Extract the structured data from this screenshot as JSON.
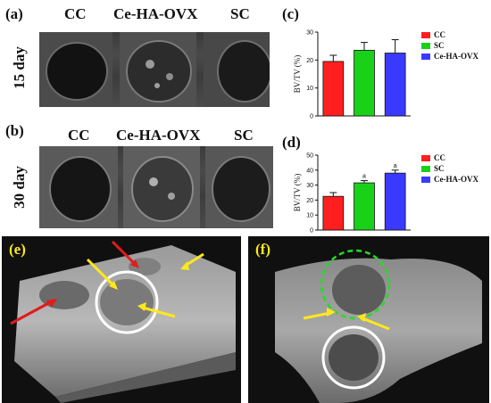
{
  "panels": {
    "a": {
      "letter": "(a)",
      "day": "15 day",
      "groups": [
        "CC",
        "Ce-HA-OVX",
        "SC"
      ]
    },
    "b": {
      "letter": "(b)",
      "day": "30 day",
      "groups": [
        "CC",
        "Ce-HA-OVX",
        "SC"
      ]
    },
    "c": {
      "letter": "(c)"
    },
    "d": {
      "letter": "(d)"
    },
    "e": {
      "letter": "(e)"
    },
    "f": {
      "letter": "(f)"
    }
  },
  "colors": {
    "cc": "#ff1f1f",
    "sc": "#19d119",
    "cehaovx": "#3a3aff",
    "arrow_red": "#e21b1b",
    "arrow_yellow": "#ffe81a",
    "circle_white": "#ffffff",
    "circle_green": "#22dd22"
  },
  "chart_data": [
    {
      "type": "bar",
      "panel": "c",
      "ylabel": "BV/TV (%)",
      "ylim": [
        0,
        30
      ],
      "yticks": [
        0,
        10,
        20,
        30
      ],
      "categories": [
        "CC",
        "SC",
        "Ce-HA-OVX"
      ],
      "values": [
        19.5,
        23.5,
        22.5
      ],
      "errors": [
        2.2,
        2.8,
        4.8
      ],
      "significance": [
        "",
        "",
        ""
      ],
      "legend": [
        "CC",
        "SC",
        "Ce-HA-OVX"
      ],
      "legend_position": "right"
    },
    {
      "type": "bar",
      "panel": "d",
      "ylabel": "BV/TV (%)",
      "ylim": [
        0,
        50
      ],
      "yticks": [
        0,
        10,
        20,
        30,
        40,
        50
      ],
      "categories": [
        "CC",
        "SC",
        "Ce-HA-OVX"
      ],
      "values": [
        22.5,
        31.5,
        38.0
      ],
      "errors": [
        2.5,
        1.5,
        2.0
      ],
      "significance": [
        "",
        "a",
        "a"
      ],
      "legend": [
        "CC",
        "SC",
        "Ce-HA-OVX"
      ],
      "legend_position": "right"
    }
  ]
}
